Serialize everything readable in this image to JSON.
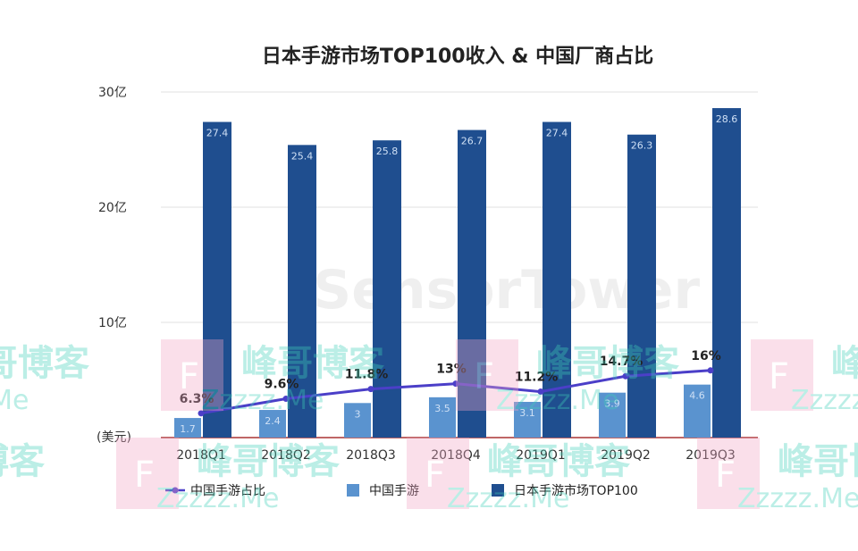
{
  "chart_data": {
    "type": "bar",
    "title": "日本手游市场TOP100收入 & 中国厂商占比",
    "unit_label": "(美元)",
    "categories": [
      "2018Q1",
      "2018Q2",
      "2018Q3",
      "2018Q4",
      "2019Q1",
      "2019Q2",
      "2019Q3"
    ],
    "series": [
      {
        "name": "中国手游",
        "type": "bar",
        "color": "#5a93cf",
        "values": [
          1.7,
          2.4,
          3,
          3.5,
          3.1,
          3.9,
          4.6
        ],
        "labels": [
          "1.7",
          "2.4",
          "3",
          "3.5",
          "3.1",
          "3.9",
          "4.6"
        ]
      },
      {
        "name": "日本手游市场TOP100",
        "type": "bar",
        "color": "#1f4e8f",
        "values": [
          27.4,
          25.4,
          25.8,
          26.7,
          27.4,
          26.3,
          28.6
        ],
        "labels": [
          "27.4",
          "25.4",
          "25.8",
          "26.7",
          "27.4",
          "26.3",
          "28.6"
        ]
      },
      {
        "name": "中国手游占比",
        "type": "line",
        "color": "#4b3fc8",
        "values": [
          6.3,
          9.6,
          11.8,
          13,
          11.2,
          14.7,
          16
        ],
        "labels": [
          "6.3%",
          "9.6%",
          "11.8%",
          "13%",
          "11.2%",
          "14.7%",
          "16%"
        ]
      }
    ],
    "yticks": [
      {
        "value": 10,
        "label": "10亿"
      },
      {
        "value": 20,
        "label": "20亿"
      },
      {
        "value": 30,
        "label": "30亿"
      }
    ],
    "ylim": [
      0,
      30
    ],
    "grid": true,
    "legend_position": "bottom"
  },
  "watermarks": {
    "source_logo": "SensorTower",
    "blog_name": "峰哥博客",
    "blog_url": "Zzzzz.Me",
    "blog_letter": "F"
  }
}
